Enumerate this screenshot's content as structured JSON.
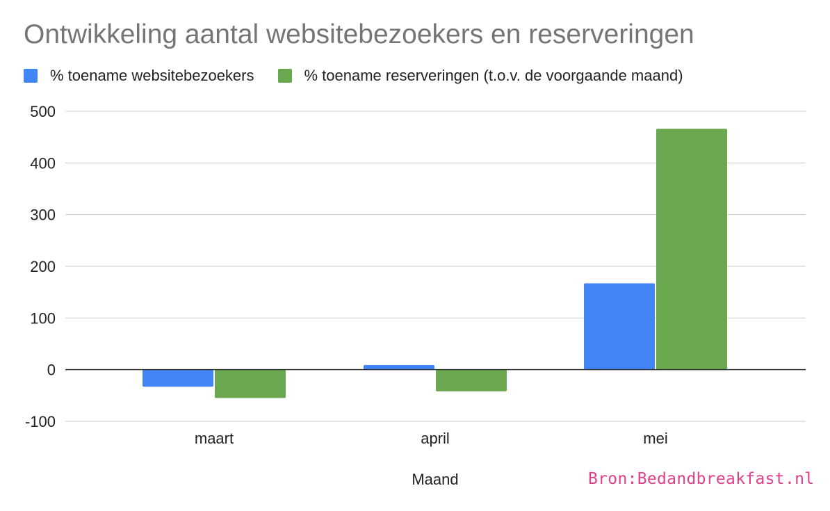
{
  "chart_data": {
    "type": "bar",
    "title": "Ontwikkeling aantal websitebezoekers en reserveringen",
    "xlabel": "Maand",
    "ylabel": "",
    "categories": [
      "maart",
      "april",
      "mei"
    ],
    "series": [
      {
        "name": "% toename websitebezoekers",
        "color": "#4285f4",
        "values": [
          -33,
          9,
          167
        ]
      },
      {
        "name": "% toename reserveringen (t.o.v. de voorgaande maand)",
        "color": "#6aa84f",
        "values": [
          -55,
          -42,
          466
        ]
      }
    ],
    "ylim": [
      -100,
      500
    ],
    "yticks": [
      500,
      400,
      300,
      200,
      100,
      0,
      -100
    ],
    "grid": true,
    "legend": "top-left"
  },
  "source": {
    "text": "Bron:Bedandbreakfast.nl",
    "color": "#e0418b"
  }
}
